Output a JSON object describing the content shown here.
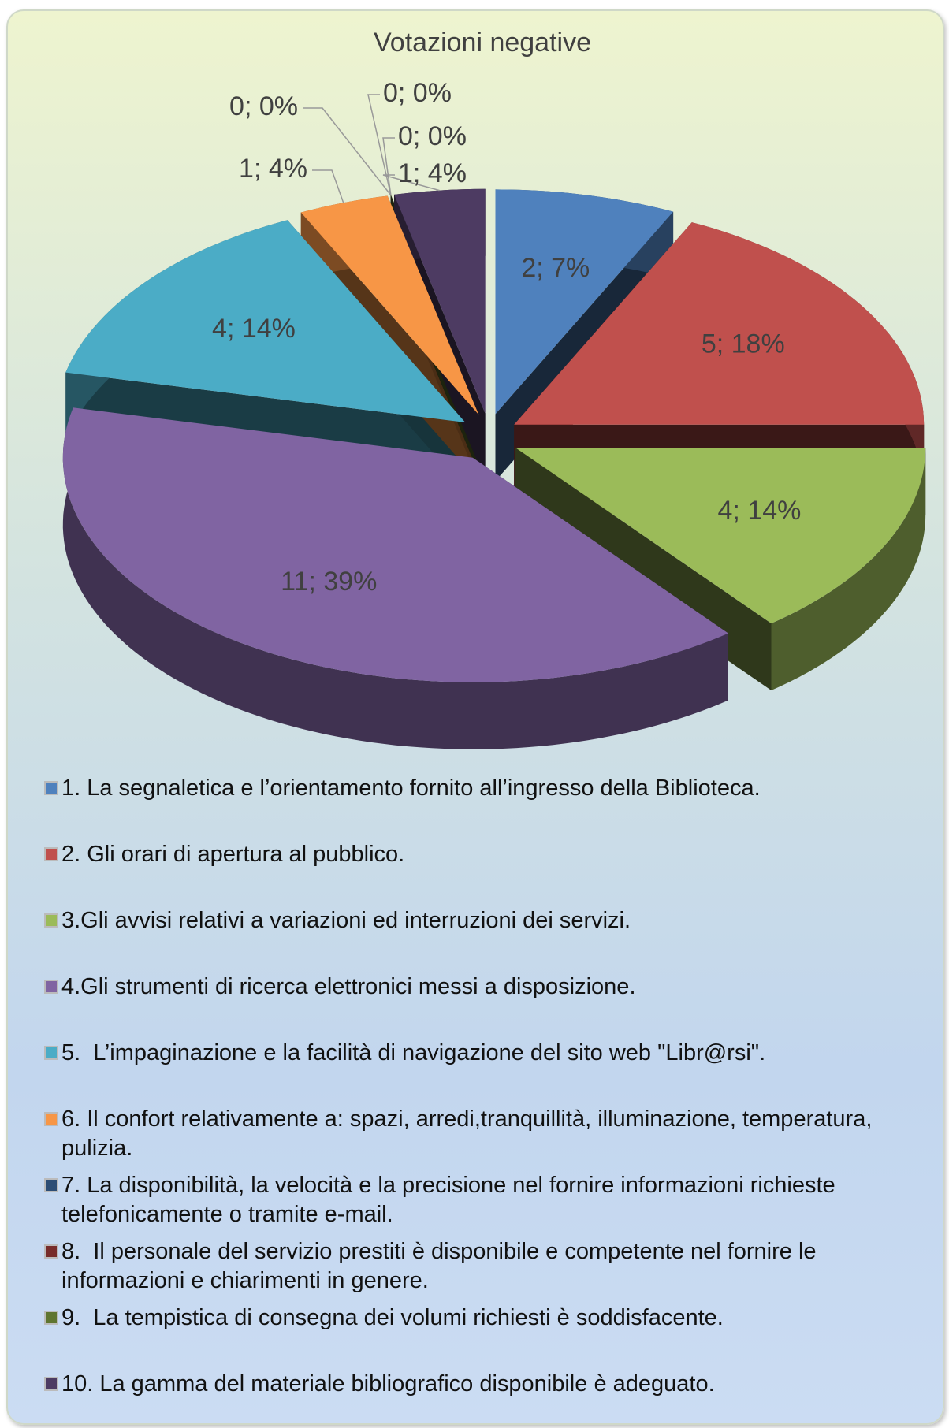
{
  "chart_data": {
    "type": "pie",
    "title": "Votazioni negative",
    "categories": [
      "1. La segnaletica e l’orientamento fornito all’ingresso della Biblioteca.",
      "2. Gli orari di apertura al pubblico.",
      "3.Gli avvisi relativi a variazioni ed interruzioni dei servizi.",
      "4.Gli strumenti di ricerca elettronici messi a disposizione.",
      "5.  L’impaginazione e la facilità di navigazione del sito web \"Libr@rsi\".",
      "6. Il confort relativamente a: spazi, arredi,tranquillità, illuminazione, temperatura, pulizia.",
      "7. La disponibilità, la velocità e la precisione nel fornire informazioni richieste telefonicamente o tramite e-mail.",
      "8.  Il personale del servizio prestiti è disponibile e competente nel fornire le informazioni e chiarimenti in genere.",
      "9.  La tempistica di consegna dei volumi richiesti è soddisfacente.",
      "10. La gamma del materiale bibliografico disponibile è adeguato."
    ],
    "values": [
      2,
      5,
      4,
      11,
      4,
      1,
      0,
      0,
      0,
      1
    ],
    "value_labels": [
      "2; 7%",
      "5; 18%",
      "4; 14%",
      "11; 39%",
      "4; 14%",
      "1; 4%",
      "0; 0%",
      "0; 0%",
      "0; 0%",
      "1; 4%"
    ],
    "colors": [
      "#4f81bd",
      "#c0504d",
      "#9bbb59",
      "#8064a2",
      "#4bacc6",
      "#f79646",
      "#2c4d75",
      "#772c2a",
      "#5f7530",
      "#4d3b62"
    ],
    "legend": "bottom"
  }
}
